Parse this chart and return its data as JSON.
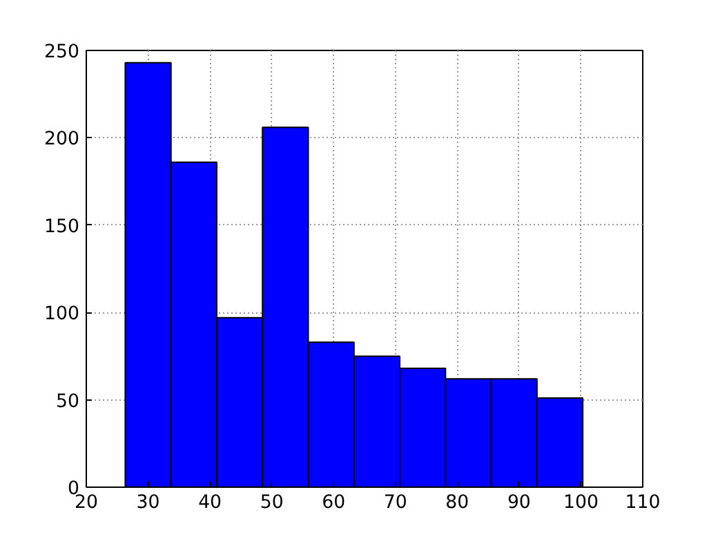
{
  "chart_data": {
    "type": "histogram",
    "bins": [
      26.3,
      33.7,
      41.1,
      48.5,
      55.9,
      63.3,
      70.7,
      78.1,
      85.5,
      92.9,
      100.3
    ],
    "values": [
      243,
      186,
      97,
      206,
      83,
      75,
      68,
      62,
      62,
      51
    ],
    "color": "#0000ff",
    "xlim": [
      20,
      110
    ],
    "xticks": [
      20,
      30,
      40,
      50,
      60,
      70,
      80,
      90,
      100,
      110
    ],
    "ylim": [
      0,
      250
    ],
    "yticks": [
      0,
      50,
      100,
      150,
      200,
      250
    ],
    "grid": true
  }
}
